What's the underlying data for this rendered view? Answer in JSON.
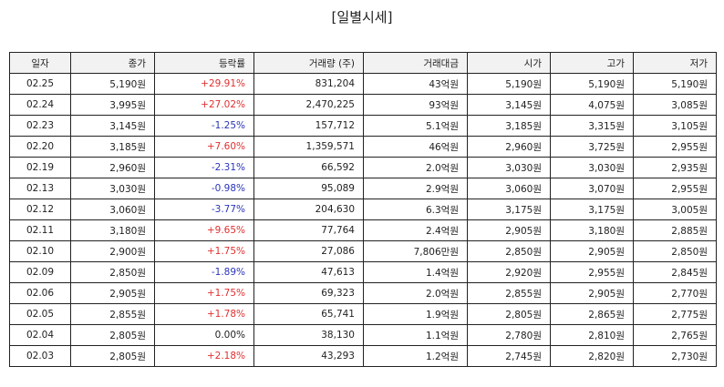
{
  "title": "[일별시세]",
  "columns": [
    "일자",
    "종가",
    "등락률",
    "거래량 (주)",
    "거래대금",
    "시가",
    "고가",
    "저가"
  ],
  "colors": {
    "up": "#e03030",
    "down": "#2b35b8",
    "flat": "#222222"
  },
  "rows": [
    {
      "date": "02.25",
      "close": "5,190원",
      "change": "+29.91%",
      "dir": "up",
      "volume": "831,204",
      "amount": "43억원",
      "open": "5,190원",
      "high": "5,190원",
      "low": "5,190원"
    },
    {
      "date": "02.24",
      "close": "3,995원",
      "change": "+27.02%",
      "dir": "up",
      "volume": "2,470,225",
      "amount": "93억원",
      "open": "3,145원",
      "high": "4,075원",
      "low": "3,085원"
    },
    {
      "date": "02.23",
      "close": "3,145원",
      "change": "-1.25%",
      "dir": "down",
      "volume": "157,712",
      "amount": "5.1억원",
      "open": "3,185원",
      "high": "3,315원",
      "low": "3,105원"
    },
    {
      "date": "02.20",
      "close": "3,185원",
      "change": "+7.60%",
      "dir": "up",
      "volume": "1,359,571",
      "amount": "46억원",
      "open": "2,960원",
      "high": "3,725원",
      "low": "2,955원"
    },
    {
      "date": "02.19",
      "close": "2,960원",
      "change": "-2.31%",
      "dir": "down",
      "volume": "66,592",
      "amount": "2.0억원",
      "open": "3,030원",
      "high": "3,030원",
      "low": "2,935원"
    },
    {
      "date": "02.13",
      "close": "3,030원",
      "change": "-0.98%",
      "dir": "down",
      "volume": "95,089",
      "amount": "2.9억원",
      "open": "3,060원",
      "high": "3,070원",
      "low": "2,955원"
    },
    {
      "date": "02.12",
      "close": "3,060원",
      "change": "-3.77%",
      "dir": "down",
      "volume": "204,630",
      "amount": "6.3억원",
      "open": "3,175원",
      "high": "3,175원",
      "low": "3,005원"
    },
    {
      "date": "02.11",
      "close": "3,180원",
      "change": "+9.65%",
      "dir": "up",
      "volume": "77,764",
      "amount": "2.4억원",
      "open": "2,905원",
      "high": "3,180원",
      "low": "2,885원"
    },
    {
      "date": "02.10",
      "close": "2,900원",
      "change": "+1.75%",
      "dir": "up",
      "volume": "27,086",
      "amount": "7,806만원",
      "open": "2,850원",
      "high": "2,905원",
      "low": "2,850원"
    },
    {
      "date": "02.09",
      "close": "2,850원",
      "change": "-1.89%",
      "dir": "down",
      "volume": "47,613",
      "amount": "1.4억원",
      "open": "2,920원",
      "high": "2,955원",
      "low": "2,845원"
    },
    {
      "date": "02.06",
      "close": "2,905원",
      "change": "+1.75%",
      "dir": "up",
      "volume": "69,323",
      "amount": "2.0억원",
      "open": "2,855원",
      "high": "2,905원",
      "low": "2,770원"
    },
    {
      "date": "02.05",
      "close": "2,855원",
      "change": "+1.78%",
      "dir": "up",
      "volume": "65,741",
      "amount": "1.9억원",
      "open": "2,805원",
      "high": "2,865원",
      "low": "2,775원"
    },
    {
      "date": "02.04",
      "close": "2,805원",
      "change": "0.00%",
      "dir": "flat",
      "volume": "38,130",
      "amount": "1.1억원",
      "open": "2,780원",
      "high": "2,810원",
      "low": "2,765원"
    },
    {
      "date": "02.03",
      "close": "2,805원",
      "change": "+2.18%",
      "dir": "up",
      "volume": "43,293",
      "amount": "1.2억원",
      "open": "2,745원",
      "high": "2,820원",
      "low": "2,730원"
    }
  ]
}
